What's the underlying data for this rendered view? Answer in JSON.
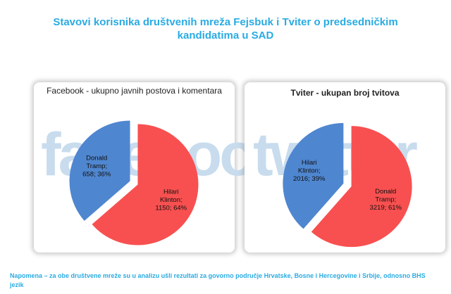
{
  "slide": {
    "title_line1": "Stavovi korisnika društvenih mreža Fejsbuk i Tviter o predsedničkim",
    "title_line2": "kandidatima u SAD",
    "footnote": "Napomena – za obe društvene mreže su u analizu ušli rezultati za govorno područje Hrvatske, Bosne i Hercegovine i Srbije, odnosno BHS jezik"
  },
  "watermarks": {
    "left": "facebook",
    "right": "twitter"
  },
  "chart_data": [
    {
      "type": "pie",
      "title": "Facebook - ukupno javnih postova i komentara",
      "slices": [
        {
          "name": "Hilari Klinton",
          "value": 1150,
          "percent": 64,
          "color": "#f85050",
          "label_lines": [
            "Hilari",
            "Klinton;",
            "1150; 64%"
          ]
        },
        {
          "name": "Donald Tramp",
          "value": 658,
          "percent": 36,
          "color": "#4f86d0",
          "label_lines": [
            "Donald",
            "Tramp;",
            "658; 36%"
          ]
        }
      ]
    },
    {
      "type": "pie",
      "title": "Tviter - ukupan broj tvitova",
      "slices": [
        {
          "name": "Donald Tramp",
          "value": 3219,
          "percent": 61,
          "color": "#f85050",
          "label_lines": [
            "Donald",
            "Tramp;",
            "3219; 61%"
          ]
        },
        {
          "name": "Hilari Klinton",
          "value": 2016,
          "percent": 39,
          "color": "#4f86d0",
          "label_lines": [
            "Hilari",
            "Klinton;",
            "2016; 39%"
          ]
        }
      ]
    }
  ]
}
